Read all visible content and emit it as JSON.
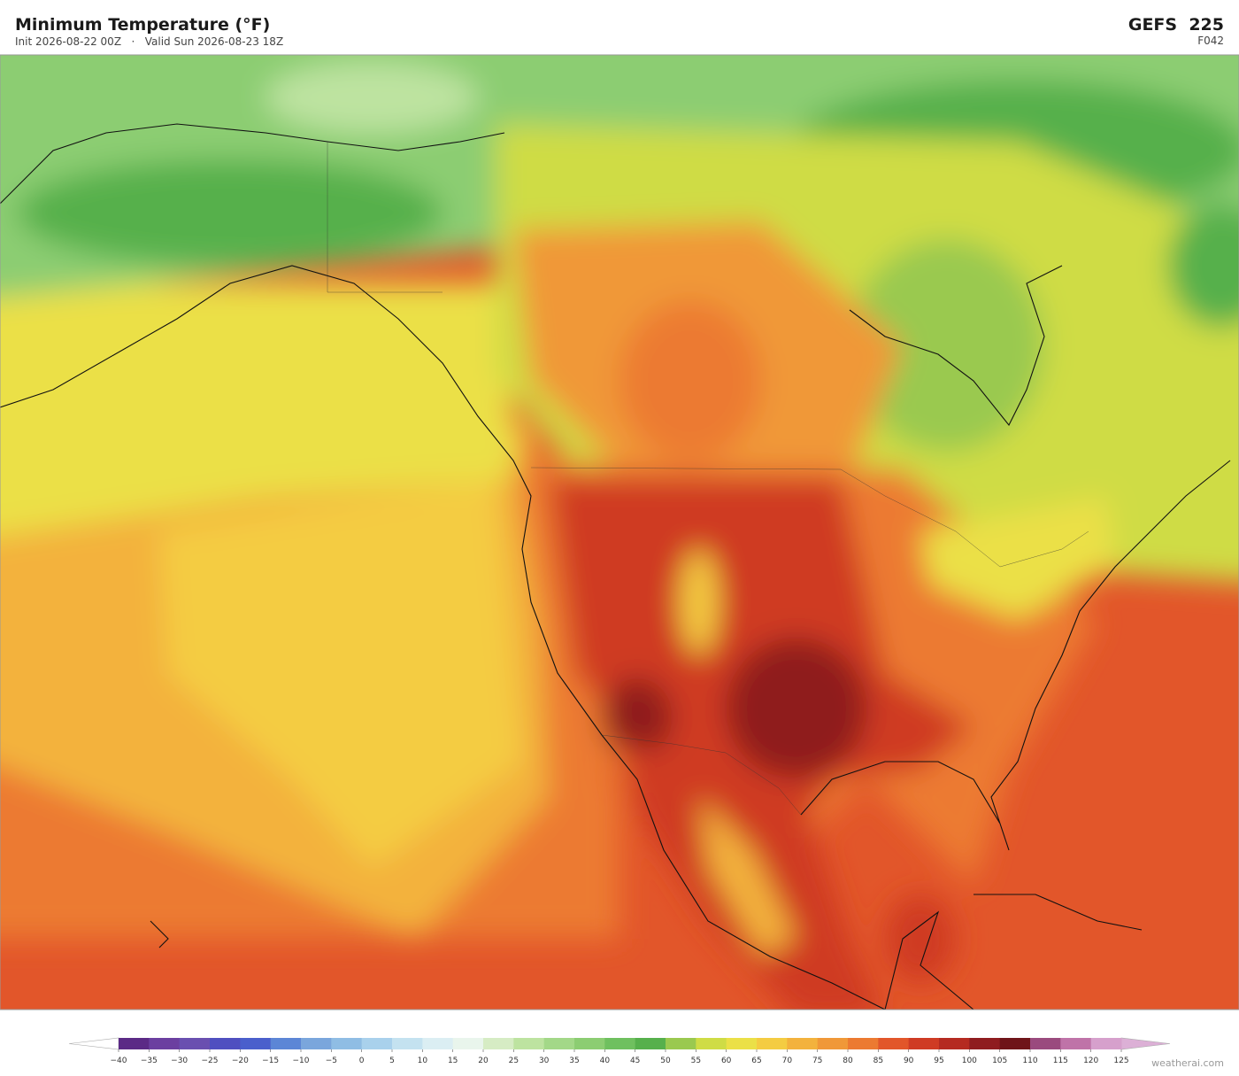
{
  "header": {
    "title": "Minimum Temperature  (°F)",
    "subtitle": "Init 2026-08-22 00Z   ·   Valid Sun 2026-08-23 18Z",
    "model": "GEFS  225",
    "forecast_hour": "F042"
  },
  "colorbar": {
    "ticks": [
      {
        "value": -40,
        "label": "−40"
      },
      {
        "value": -35,
        "label": "−35"
      },
      {
        "value": -30,
        "label": "−30"
      },
      {
        "value": -25,
        "label": "−25"
      },
      {
        "value": -20,
        "label": "−20"
      },
      {
        "value": -15,
        "label": "−15"
      },
      {
        "value": -10,
        "label": "−10"
      },
      {
        "value": -5,
        "label": "−5"
      },
      0,
      5,
      10,
      15,
      20,
      25,
      30,
      35,
      40,
      45,
      50,
      55,
      60,
      65,
      70,
      75,
      80,
      85,
      90,
      95,
      100,
      105,
      110,
      115,
      120,
      125
    ],
    "colors": [
      "#5b2a86",
      "#6b3fa0",
      "#6a4fb0",
      "#4f4fc0",
      "#4a5fcc",
      "#5c86d6",
      "#7aa6dc",
      "#8fbde4",
      "#a9d1ec",
      "#c4e2f0",
      "#dbeef3",
      "#e9f5ec",
      "#d6ecc4",
      "#bde3a0",
      "#a3d888",
      "#8ccd72",
      "#6fc05f",
      "#56b04c",
      "#9ac94f",
      "#cfdc45",
      "#ebe047",
      "#f4cc42",
      "#f3b23d",
      "#f09838",
      "#ec7a31",
      "#e2562a",
      "#cf3b24",
      "#b52a21",
      "#8f1c1f",
      "#6f1419",
      "#9a4a7e",
      "#bf73a8",
      "#d6a0cc"
    ],
    "under_color": "#ffffff",
    "over_color": "#dcb0d6"
  },
  "footer": {
    "credit": "weatherai.com"
  }
}
